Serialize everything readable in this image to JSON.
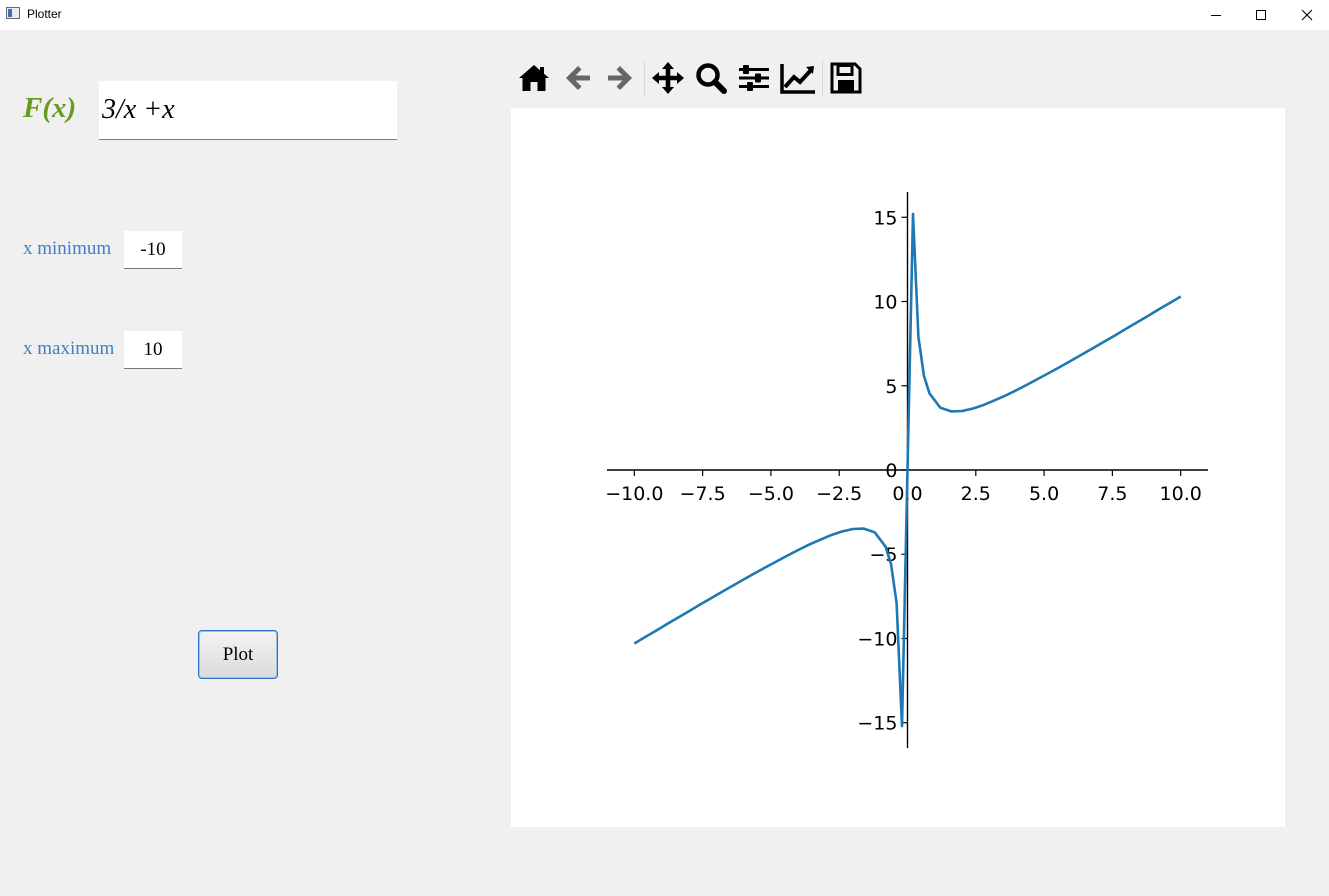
{
  "window": {
    "title": "Plotter"
  },
  "form": {
    "function_label": "F(x)",
    "function_value": "3/x +x",
    "x_min_label": "x minimum",
    "x_min_value": "-10",
    "x_max_label": "x maximum",
    "x_max_value": "10",
    "plot_button": "Plot"
  },
  "toolbar": {
    "items": [
      "home-icon",
      "back-arrow-icon",
      "forward-arrow-icon",
      "pan-icon",
      "zoom-icon",
      "subplots-config-icon",
      "edit-axes-icon",
      "save-icon"
    ]
  },
  "colors": {
    "function_label": "#6a9a1f",
    "range_label": "#3f7fc4",
    "line": "#1f77b4"
  },
  "chart_data": {
    "type": "line",
    "title": "",
    "xlabel": "",
    "ylabel": "",
    "xlim": [
      -11.0,
      11.0
    ],
    "ylim": [
      -16.5,
      16.5
    ],
    "xticks": [
      -10.0,
      -7.5,
      -5.0,
      -2.5,
      0.0,
      2.5,
      5.0,
      7.5,
      10.0
    ],
    "xtick_labels": [
      "−10.0",
      "−7.5",
      "−5.0",
      "−2.5",
      "0.0",
      "2.5",
      "5.0",
      "7.5",
      "10.0"
    ],
    "yticks": [
      -15,
      -10,
      -5,
      0,
      5,
      10,
      15
    ],
    "ytick_labels": [
      "−15",
      "−10",
      "−5",
      "0",
      "5",
      "10",
      "15"
    ],
    "spines": "centered at origin",
    "grid": false,
    "series": [
      {
        "x": [
          -10.0,
          -9.6,
          -9.2,
          -8.8,
          -8.4,
          -8.0,
          -7.6,
          -7.2,
          -6.8,
          -6.4,
          -6.0,
          -5.6,
          -5.2,
          -4.8,
          -4.4,
          -4.0,
          -3.6,
          -3.2,
          -2.8,
          -2.4,
          -2.0,
          -1.6,
          -1.2,
          -0.8,
          -0.6,
          -0.4,
          -0.2,
          0.2,
          0.4,
          0.6,
          0.8,
          1.2,
          1.6,
          2.0,
          2.4,
          2.8,
          3.2,
          3.6,
          4.0,
          4.4,
          4.8,
          5.2,
          5.6,
          6.0,
          6.4,
          6.8,
          7.2,
          7.6,
          8.0,
          8.4,
          8.8,
          9.2,
          9.6,
          10.0
        ],
        "y": [
          -10.3,
          -9.91,
          -9.53,
          -9.14,
          -8.76,
          -8.38,
          -7.99,
          -7.62,
          -7.24,
          -6.87,
          -6.5,
          -6.14,
          -5.78,
          -5.43,
          -5.08,
          -4.75,
          -4.43,
          -4.14,
          -3.87,
          -3.65,
          -3.5,
          -3.48,
          -3.7,
          -4.55,
          -5.6,
          -7.9,
          -15.2,
          15.2,
          7.9,
          5.6,
          4.55,
          3.7,
          3.48,
          3.5,
          3.65,
          3.87,
          4.14,
          4.43,
          4.75,
          5.08,
          5.43,
          5.78,
          6.14,
          6.5,
          6.87,
          7.24,
          7.62,
          7.99,
          8.38,
          8.76,
          9.14,
          9.53,
          9.91,
          10.3
        ]
      }
    ]
  }
}
